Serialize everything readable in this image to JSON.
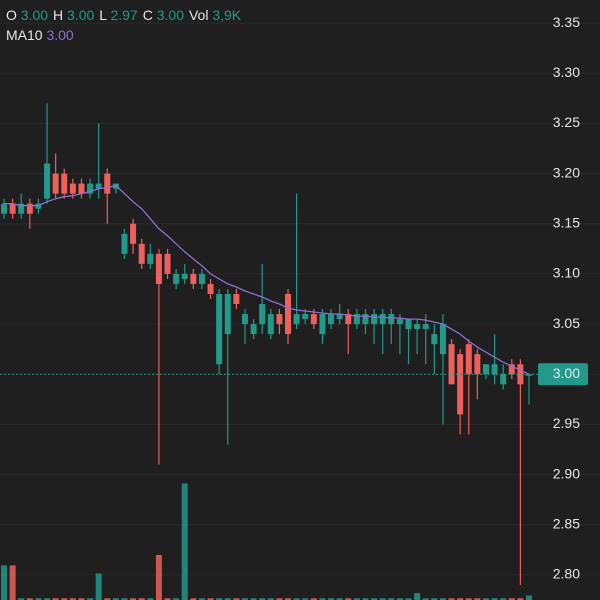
{
  "chart_data": {
    "type": "candlestick",
    "header": [
      {
        "label": "O",
        "value": "3.00"
      },
      {
        "label": "H",
        "value": "3.00"
      },
      {
        "label": "L",
        "value": "2.97"
      },
      {
        "label": "C",
        "value": "3.00"
      },
      {
        "label": "Vol",
        "value": "3,9K"
      }
    ],
    "ma_header": {
      "label": "MA10",
      "value": "3.00"
    },
    "open": [
      3.16,
      3.17,
      3.16,
      3.17,
      3.165,
      3.175,
      3.2,
      3.2,
      3.19,
      3.19,
      3.18,
      3.185,
      3.2,
      3.185,
      3.12,
      3.15,
      3.13,
      3.11,
      3.12,
      3.12,
      3.09,
      3.095,
      3.1,
      3.09,
      3.09,
      3.01,
      3.04,
      3.08,
      3.05,
      3.04,
      3.05,
      3.04,
      3.06,
      3.08,
      3.05,
      3.055,
      3.06,
      3.04,
      3.05,
      3.055,
      3.06,
      3.05,
      3.05,
      3.05,
      3.05,
      3.05,
      3.05,
      3.045,
      3.045,
      3.045,
      3.03,
      3.02,
      3.03,
      3.02,
      3.03,
      3.02,
      3.0,
      3.0,
      2.99,
      3.01,
      3.01,
      3.0
    ],
    "high": [
      3.175,
      3.175,
      3.18,
      3.175,
      3.175,
      3.27,
      3.22,
      3.205,
      3.195,
      3.195,
      3.195,
      3.25,
      3.205,
      3.19,
      3.145,
      3.155,
      3.135,
      3.13,
      3.125,
      3.125,
      3.105,
      3.11,
      3.105,
      3.105,
      3.095,
      3.085,
      3.085,
      3.085,
      3.065,
      3.055,
      3.11,
      3.065,
      3.065,
      3.085,
      3.18,
      3.065,
      3.065,
      3.065,
      3.065,
      3.07,
      3.065,
      3.065,
      3.065,
      3.065,
      3.065,
      3.065,
      3.06,
      3.055,
      3.055,
      3.06,
      3.05,
      3.06,
      3.035,
      3.025,
      3.035,
      3.025,
      3.01,
      3.04,
      3.01,
      3.015,
      3.015,
      3.0
    ],
    "low": [
      3.155,
      3.155,
      3.155,
      3.145,
      3.16,
      3.17,
      3.175,
      3.175,
      3.175,
      3.175,
      3.175,
      3.175,
      3.15,
      3.18,
      3.115,
      3.12,
      3.105,
      3.105,
      2.91,
      3.095,
      3.085,
      3.09,
      3.085,
      3.085,
      3.075,
      3.0,
      2.93,
      3.065,
      3.03,
      3.035,
      3.04,
      3.035,
      3.04,
      3.03,
      3.045,
      3.05,
      3.045,
      3.03,
      3.045,
      3.05,
      3.02,
      3.045,
      3.04,
      3.03,
      3.02,
      3.03,
      3.02,
      3.01,
      3.02,
      3.01,
      3.0,
      2.95,
      2.99,
      2.94,
      2.94,
      2.975,
      2.995,
      2.99,
      2.985,
      2.995,
      2.79,
      2.97
    ],
    "close": [
      3.17,
      3.16,
      3.17,
      3.16,
      3.17,
      3.21,
      3.18,
      3.18,
      3.18,
      3.18,
      3.19,
      3.19,
      3.18,
      3.19,
      3.14,
      3.13,
      3.11,
      3.12,
      3.09,
      3.1,
      3.1,
      3.1,
      3.09,
      3.1,
      3.08,
      3.08,
      3.08,
      3.07,
      3.06,
      3.05,
      3.07,
      3.06,
      3.05,
      3.04,
      3.06,
      3.06,
      3.05,
      3.06,
      3.06,
      3.06,
      3.05,
      3.06,
      3.06,
      3.06,
      3.06,
      3.06,
      3.055,
      3.055,
      3.05,
      3.05,
      3.04,
      3.05,
      2.99,
      2.96,
      3.0,
      3.0,
      3.01,
      3.01,
      3.0,
      3.0,
      2.99,
      3.0
    ],
    "volume": [
      30000,
      30000,
      1500,
      1500,
      1500,
      1500,
      1500,
      1500,
      1500,
      1500,
      1500,
      23000,
      1500,
      1500,
      1500,
      1500,
      1500,
      1500,
      39000,
      1500,
      1500,
      101000,
      1500,
      1500,
      1500,
      1500,
      1500,
      1500,
      1500,
      1500,
      1500,
      1500,
      1500,
      1500,
      1500,
      1500,
      1500,
      1500,
      1500,
      1500,
      1500,
      1500,
      1500,
      1500,
      1500,
      1500,
      1500,
      1500,
      6000,
      1500,
      1500,
      1500,
      1500,
      1500,
      1500,
      1500,
      1500,
      1500,
      1500,
      1500,
      1500,
      3900
    ],
    "ma10": [
      3.17,
      3.17,
      3.168,
      3.168,
      3.168,
      3.172,
      3.175,
      3.177,
      3.178,
      3.18,
      3.182,
      3.185,
      3.186,
      3.188,
      3.18,
      3.172,
      3.165,
      3.155,
      3.145,
      3.138,
      3.13,
      3.122,
      3.115,
      3.108,
      3.1,
      3.095,
      3.09,
      3.087,
      3.083,
      3.08,
      3.077,
      3.073,
      3.07,
      3.066,
      3.064,
      3.063,
      3.062,
      3.061,
      3.06,
      3.06,
      3.059,
      3.058,
      3.058,
      3.057,
      3.057,
      3.056,
      3.056,
      3.055,
      3.055,
      3.054,
      3.052,
      3.05,
      3.045,
      3.04,
      3.033,
      3.027,
      3.022,
      3.017,
      3.012,
      3.008,
      3.004,
      3.0
    ],
    "last_price": {
      "value": 3,
      "label": "3.00"
    },
    "ylim": [
      2.775,
      3.373
    ],
    "yticks": [
      {
        "value": 3.35,
        "label": "3.35"
      },
      {
        "value": 3.3,
        "label": "3.30"
      },
      {
        "value": 3.25,
        "label": "3.25"
      },
      {
        "value": 3.2,
        "label": "3.20"
      },
      {
        "value": 3.15,
        "label": "3.15"
      },
      {
        "value": 3.1,
        "label": "3.10"
      },
      {
        "value": 3.05,
        "label": "3.05"
      },
      {
        "value": 3.0,
        "label": "3.00"
      },
      {
        "value": 2.95,
        "label": "2.95"
      },
      {
        "value": 2.9,
        "label": "2.90"
      },
      {
        "value": 2.85,
        "label": "2.85"
      },
      {
        "value": 2.8,
        "label": "2.80"
      }
    ],
    "vlim": [
      0,
      130000
    ],
    "grid": true,
    "up_color": "#22998a",
    "down_color": "#ef5f5c",
    "ma_color": "#8e6fd0"
  }
}
